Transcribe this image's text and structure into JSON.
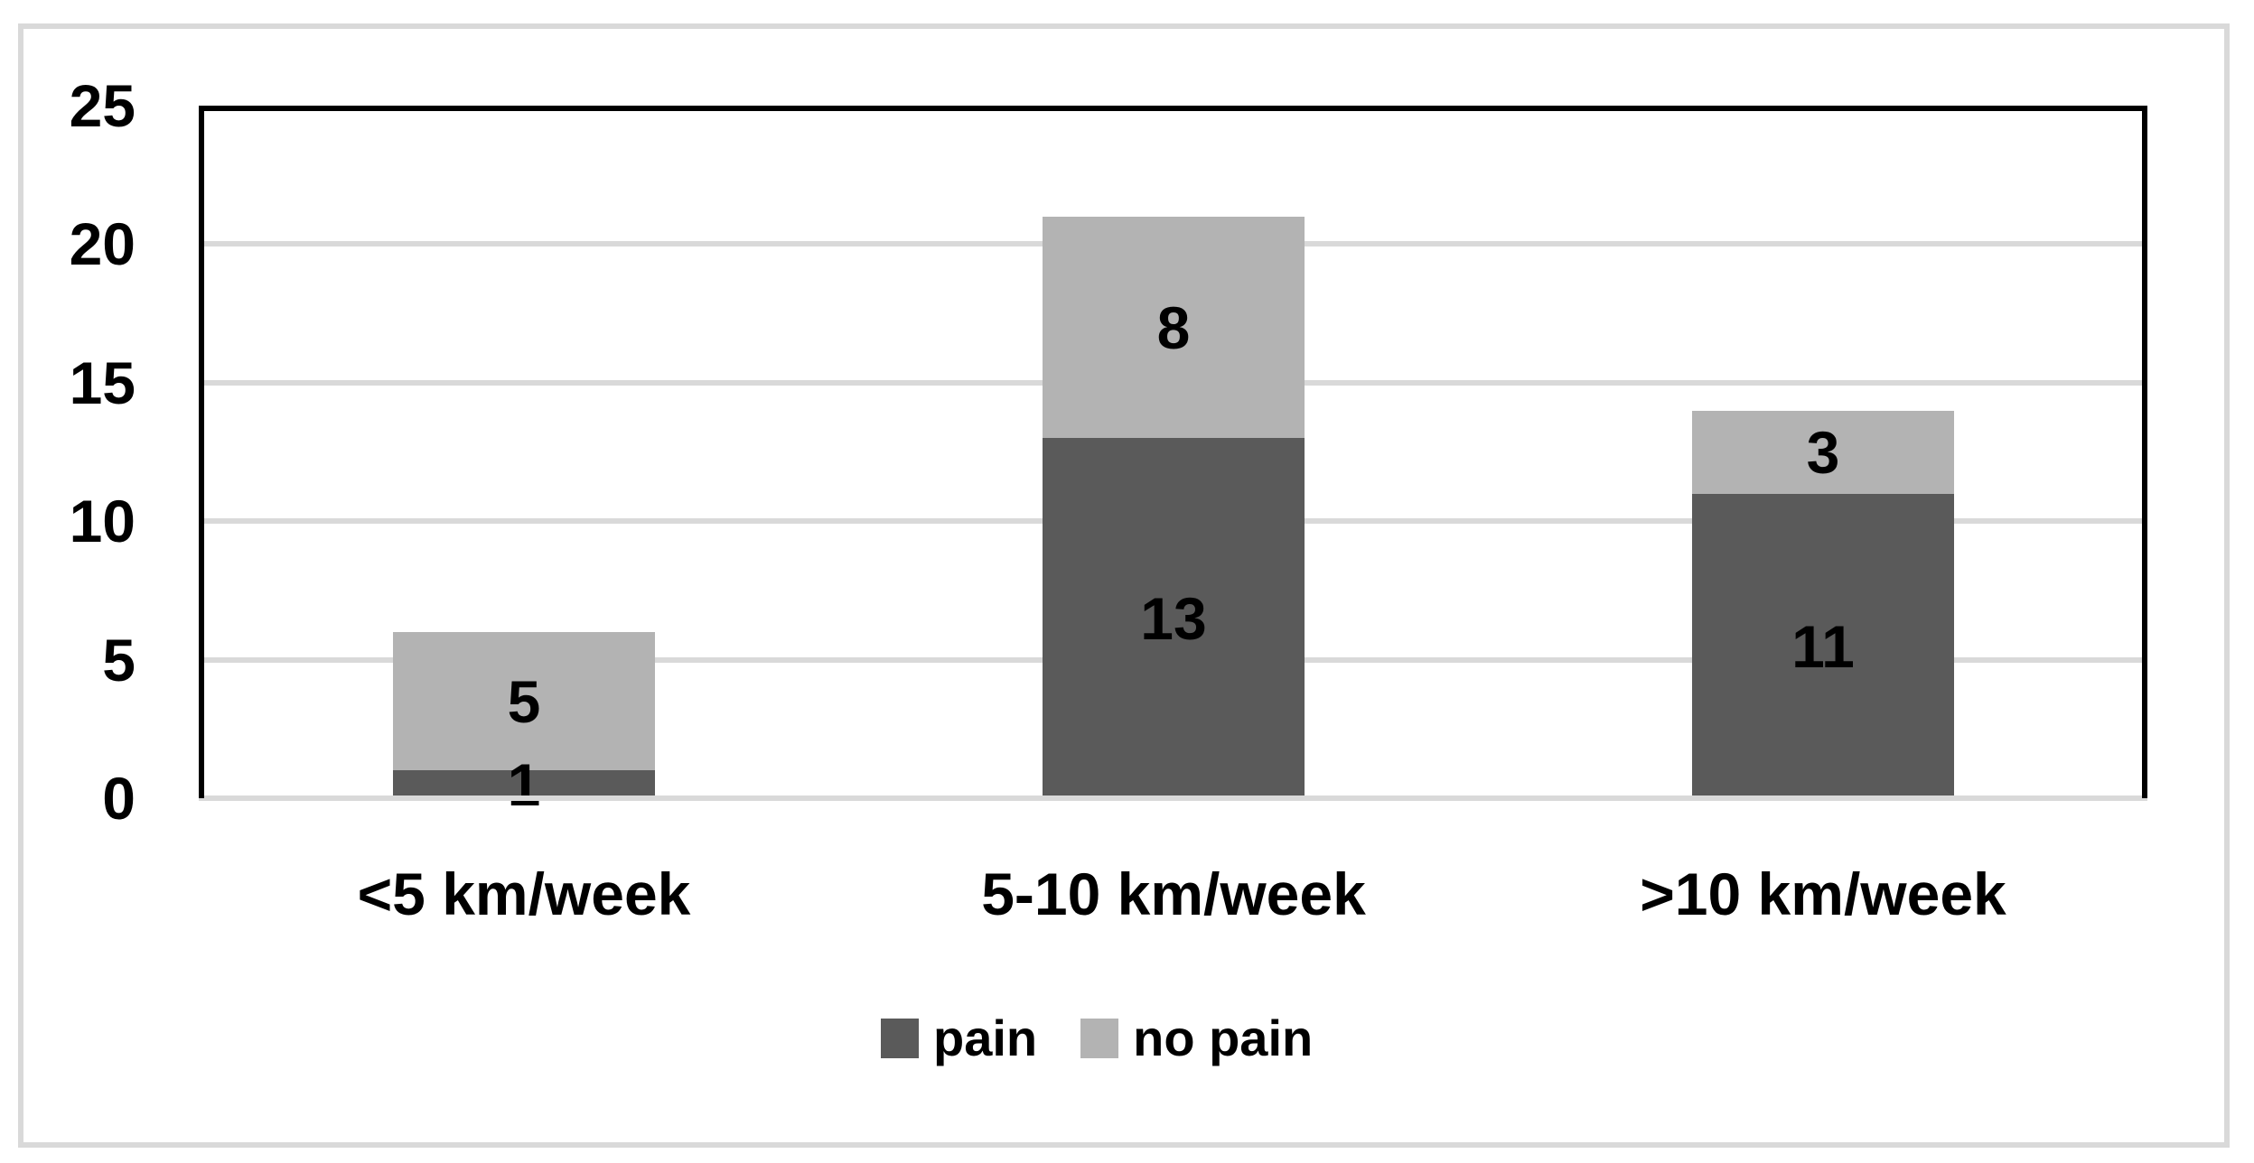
{
  "chart_data": {
    "type": "bar",
    "stacked": true,
    "orientation": "vertical",
    "categories": [
      "<5 km/week",
      "5-10 km/week",
      ">10 km/week"
    ],
    "series": [
      {
        "name": "pain",
        "color": "#5a5a5a",
        "values": [
          1,
          13,
          11
        ]
      },
      {
        "name": "no pain",
        "color": "#b3b3b3",
        "values": [
          5,
          8,
          3
        ]
      }
    ],
    "data_labels": {
      "pain": [
        "1",
        "13",
        "11"
      ],
      "no_pain": [
        "5",
        "8",
        "3"
      ]
    },
    "title": "",
    "xlabel": "",
    "ylabel": "",
    "ylim": [
      0,
      25
    ],
    "yticks": [
      "0",
      "5",
      "10",
      "15",
      "20",
      "25"
    ],
    "grid": true,
    "gridline_color": "#d9d9d9",
    "plot_border_color": "#000000",
    "background_color": "#ffffff",
    "legend_position": "bottom"
  },
  "legend": {
    "items": [
      {
        "label": "pain",
        "color": "#5a5a5a"
      },
      {
        "label": "no pain",
        "color": "#b3b3b3"
      }
    ]
  }
}
